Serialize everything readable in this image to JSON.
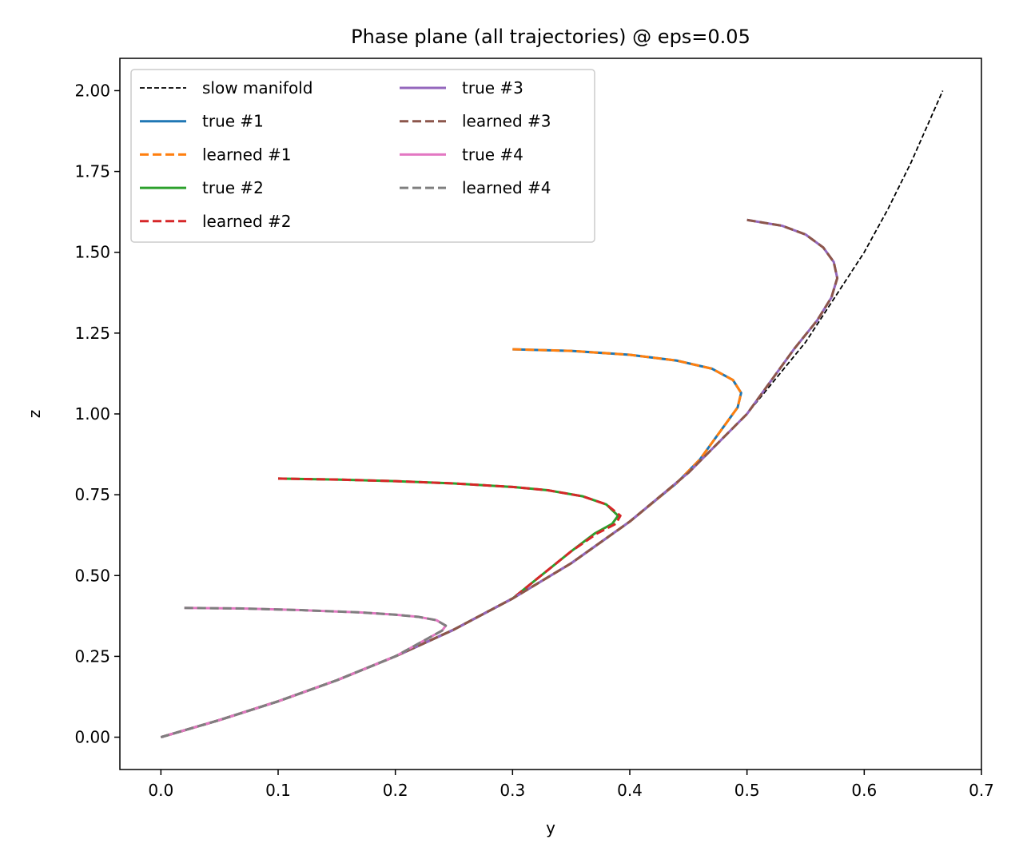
{
  "chart_data": {
    "type": "line",
    "title": "Phase plane (all trajectories) @ eps=0.05",
    "xlabel": "y",
    "ylabel": "z",
    "xlim": [
      -0.035,
      0.7
    ],
    "ylim": [
      -0.1,
      2.1
    ],
    "xticks": [
      "0.0",
      "0.1",
      "0.2",
      "0.3",
      "0.4",
      "0.5",
      "0.6",
      "0.7"
    ],
    "xtick_values": [
      0.0,
      0.1,
      0.2,
      0.3,
      0.4,
      0.5,
      0.6,
      0.7
    ],
    "yticks": [
      "0.00",
      "0.25",
      "0.50",
      "0.75",
      "1.00",
      "1.25",
      "1.50",
      "1.75",
      "2.00"
    ],
    "ytick_values": [
      0.0,
      0.25,
      0.5,
      0.75,
      1.0,
      1.25,
      1.5,
      1.75,
      2.0
    ],
    "grid": false,
    "legend_position": "top-left",
    "legend_columns": 2,
    "series": [
      {
        "name": "slow manifold",
        "color": "#000000",
        "dash": "short-dash",
        "points": [
          [
            0.0,
            0.0
          ],
          [
            0.05,
            0.053
          ],
          [
            0.1,
            0.111
          ],
          [
            0.15,
            0.176
          ],
          [
            0.2,
            0.25
          ],
          [
            0.25,
            0.333
          ],
          [
            0.3,
            0.429
          ],
          [
            0.35,
            0.538
          ],
          [
            0.4,
            0.667
          ],
          [
            0.45,
            0.818
          ],
          [
            0.5,
            1.0
          ],
          [
            0.55,
            1.222
          ],
          [
            0.6,
            1.5
          ],
          [
            0.62,
            1.632
          ],
          [
            0.64,
            1.778
          ],
          [
            0.667,
            2.0
          ]
        ]
      },
      {
        "name": "true #1",
        "color": "#1f77b4",
        "dash": "solid",
        "points": [
          [
            0.3,
            1.2
          ],
          [
            0.35,
            1.195
          ],
          [
            0.4,
            1.183
          ],
          [
            0.44,
            1.165
          ],
          [
            0.47,
            1.14
          ],
          [
            0.488,
            1.105
          ],
          [
            0.495,
            1.065
          ],
          [
            0.492,
            1.02
          ],
          [
            0.48,
            0.96
          ],
          [
            0.46,
            0.86
          ],
          [
            0.44,
            0.786
          ],
          [
            0.4,
            0.667
          ],
          [
            0.35,
            0.538
          ],
          [
            0.3,
            0.429
          ],
          [
            0.25,
            0.333
          ],
          [
            0.2,
            0.25
          ],
          [
            0.15,
            0.176
          ],
          [
            0.1,
            0.111
          ],
          [
            0.05,
            0.053
          ],
          [
            0.0,
            0.0
          ]
        ]
      },
      {
        "name": "learned #1",
        "color": "#ff7f0e",
        "dash": "dashed",
        "points": [
          [
            0.3,
            1.2
          ],
          [
            0.35,
            1.195
          ],
          [
            0.4,
            1.183
          ],
          [
            0.44,
            1.165
          ],
          [
            0.47,
            1.14
          ],
          [
            0.488,
            1.105
          ],
          [
            0.495,
            1.065
          ],
          [
            0.492,
            1.02
          ],
          [
            0.48,
            0.96
          ],
          [
            0.46,
            0.86
          ],
          [
            0.44,
            0.786
          ],
          [
            0.4,
            0.667
          ],
          [
            0.35,
            0.538
          ],
          [
            0.3,
            0.429
          ],
          [
            0.25,
            0.333
          ],
          [
            0.2,
            0.25
          ],
          [
            0.15,
            0.176
          ],
          [
            0.1,
            0.111
          ],
          [
            0.05,
            0.053
          ],
          [
            0.0,
            0.0
          ]
        ]
      },
      {
        "name": "true #2",
        "color": "#2ca02c",
        "dash": "solid",
        "points": [
          [
            0.1,
            0.8
          ],
          [
            0.15,
            0.797
          ],
          [
            0.2,
            0.792
          ],
          [
            0.25,
            0.785
          ],
          [
            0.3,
            0.774
          ],
          [
            0.33,
            0.764
          ],
          [
            0.36,
            0.745
          ],
          [
            0.38,
            0.72
          ],
          [
            0.39,
            0.685
          ],
          [
            0.385,
            0.66
          ],
          [
            0.37,
            0.63
          ],
          [
            0.35,
            0.575
          ],
          [
            0.3,
            0.429
          ],
          [
            0.25,
            0.333
          ],
          [
            0.2,
            0.25
          ],
          [
            0.15,
            0.176
          ],
          [
            0.1,
            0.111
          ],
          [
            0.05,
            0.053
          ],
          [
            0.0,
            0.0
          ]
        ]
      },
      {
        "name": "learned #2",
        "color": "#d62728",
        "dash": "dashed",
        "points": [
          [
            0.1,
            0.8
          ],
          [
            0.15,
            0.797
          ],
          [
            0.2,
            0.792
          ],
          [
            0.25,
            0.785
          ],
          [
            0.3,
            0.774
          ],
          [
            0.33,
            0.764
          ],
          [
            0.36,
            0.745
          ],
          [
            0.38,
            0.72
          ],
          [
            0.392,
            0.685
          ],
          [
            0.388,
            0.66
          ],
          [
            0.372,
            0.63
          ],
          [
            0.35,
            0.575
          ],
          [
            0.3,
            0.429
          ],
          [
            0.25,
            0.333
          ],
          [
            0.2,
            0.25
          ],
          [
            0.15,
            0.176
          ],
          [
            0.1,
            0.111
          ],
          [
            0.05,
            0.053
          ],
          [
            0.0,
            0.0
          ]
        ]
      },
      {
        "name": "true #3",
        "color": "#9467bd",
        "dash": "solid",
        "points": [
          [
            0.5,
            1.6
          ],
          [
            0.53,
            1.582
          ],
          [
            0.55,
            1.555
          ],
          [
            0.565,
            1.515
          ],
          [
            0.574,
            1.47
          ],
          [
            0.577,
            1.42
          ],
          [
            0.572,
            1.36
          ],
          [
            0.56,
            1.29
          ],
          [
            0.54,
            1.2
          ],
          [
            0.5,
            1.0
          ],
          [
            0.45,
            0.818
          ],
          [
            0.4,
            0.667
          ],
          [
            0.35,
            0.538
          ],
          [
            0.3,
            0.429
          ],
          [
            0.25,
            0.333
          ],
          [
            0.2,
            0.25
          ],
          [
            0.15,
            0.176
          ],
          [
            0.1,
            0.111
          ],
          [
            0.05,
            0.053
          ],
          [
            0.0,
            0.0
          ]
        ]
      },
      {
        "name": "learned #3",
        "color": "#8c564b",
        "dash": "dashed",
        "points": [
          [
            0.5,
            1.6
          ],
          [
            0.53,
            1.582
          ],
          [
            0.55,
            1.555
          ],
          [
            0.565,
            1.515
          ],
          [
            0.574,
            1.47
          ],
          [
            0.577,
            1.42
          ],
          [
            0.572,
            1.36
          ],
          [
            0.56,
            1.29
          ],
          [
            0.54,
            1.2
          ],
          [
            0.5,
            1.0
          ],
          [
            0.45,
            0.818
          ],
          [
            0.4,
            0.667
          ],
          [
            0.35,
            0.538
          ],
          [
            0.3,
            0.429
          ],
          [
            0.25,
            0.333
          ],
          [
            0.2,
            0.25
          ],
          [
            0.15,
            0.176
          ],
          [
            0.1,
            0.111
          ],
          [
            0.05,
            0.053
          ],
          [
            0.0,
            0.0
          ]
        ]
      },
      {
        "name": "true #4",
        "color": "#e377c2",
        "dash": "solid",
        "points": [
          [
            0.02,
            0.4
          ],
          [
            0.07,
            0.398
          ],
          [
            0.12,
            0.393
          ],
          [
            0.17,
            0.386
          ],
          [
            0.2,
            0.379
          ],
          [
            0.22,
            0.372
          ],
          [
            0.235,
            0.362
          ],
          [
            0.243,
            0.345
          ],
          [
            0.24,
            0.33
          ],
          [
            0.2,
            0.25
          ],
          [
            0.15,
            0.176
          ],
          [
            0.1,
            0.111
          ],
          [
            0.05,
            0.053
          ],
          [
            0.0,
            0.0
          ]
        ]
      },
      {
        "name": "learned #4",
        "color": "#7f7f7f",
        "dash": "dashed",
        "points": [
          [
            0.02,
            0.4
          ],
          [
            0.07,
            0.398
          ],
          [
            0.12,
            0.393
          ],
          [
            0.17,
            0.386
          ],
          [
            0.2,
            0.379
          ],
          [
            0.22,
            0.372
          ],
          [
            0.235,
            0.362
          ],
          [
            0.243,
            0.345
          ],
          [
            0.24,
            0.33
          ],
          [
            0.2,
            0.25
          ],
          [
            0.15,
            0.176
          ],
          [
            0.1,
            0.111
          ],
          [
            0.05,
            0.053
          ],
          [
            0.0,
            0.0
          ]
        ]
      }
    ]
  }
}
